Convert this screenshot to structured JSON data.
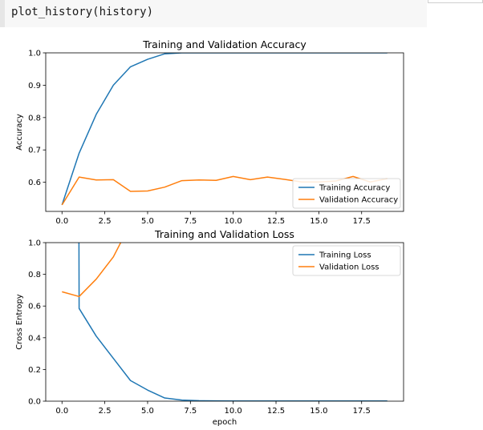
{
  "cell": {
    "code": "plot_history(history)"
  },
  "chart_data": [
    {
      "type": "line",
      "title": "Training and Validation Accuracy",
      "xlabel": "",
      "ylabel": "Accuracy",
      "xlim": [
        -0.95,
        19.95
      ],
      "ylim": [
        0.51,
        1.0
      ],
      "xticks": [
        0.0,
        2.5,
        5.0,
        7.5,
        10.0,
        12.5,
        15.0,
        17.5
      ],
      "xtick_labels": [
        "0.0",
        "2.5",
        "5.0",
        "7.5",
        "10.0",
        "12.5",
        "15.0",
        "17.5"
      ],
      "yticks": [
        0.6,
        0.7,
        0.8,
        0.9,
        1.0
      ],
      "ytick_labels": [
        "0.6",
        "0.7",
        "0.8",
        "0.9",
        "1.0"
      ],
      "legend_position": "lower-right",
      "x": [
        0,
        1,
        2,
        3,
        4,
        5,
        6,
        7,
        8,
        9,
        10,
        11,
        12,
        13,
        14,
        15,
        16,
        17,
        18,
        19
      ],
      "series": [
        {
          "name": "Training Accuracy",
          "color": "#1f77b4",
          "values": [
            0.53,
            0.69,
            0.81,
            0.9,
            0.957,
            0.98,
            0.997,
            1.0,
            1.0,
            1.0,
            1.0,
            1.0,
            1.0,
            1.0,
            1.0,
            1.0,
            1.0,
            1.0,
            1.0,
            1.0
          ]
        },
        {
          "name": "Validation Accuracy",
          "color": "#ff7f0e",
          "values": [
            0.53,
            0.616,
            0.607,
            0.608,
            0.572,
            0.573,
            0.585,
            0.605,
            0.607,
            0.606,
            0.618,
            0.608,
            0.616,
            0.609,
            0.601,
            0.601,
            0.604,
            0.618,
            0.601,
            0.611
          ]
        }
      ]
    },
    {
      "type": "line",
      "title": "Training and Validation Loss",
      "xlabel": "epoch",
      "ylabel": "Cross Entropy",
      "xlim": [
        -0.95,
        19.95
      ],
      "ylim": [
        0.0,
        1.0
      ],
      "xticks": [
        0.0,
        2.5,
        5.0,
        7.5,
        10.0,
        12.5,
        15.0,
        17.5
      ],
      "xtick_labels": [
        "0.0",
        "2.5",
        "5.0",
        "7.5",
        "10.0",
        "12.5",
        "15.0",
        "17.5"
      ],
      "yticks": [
        0.0,
        0.2,
        0.4,
        0.6,
        0.8,
        1.0
      ],
      "ytick_labels": [
        "0.0",
        "0.2",
        "0.4",
        "0.6",
        "0.8",
        "1.0"
      ],
      "legend_position": "upper-right",
      "series": [
        {
          "name": "Training Loss",
          "color": "#1f77b4",
          "x": [
            0.97,
            0.99,
            1,
            2,
            3,
            4,
            5,
            6,
            7,
            8,
            9,
            10,
            11,
            12,
            13,
            14,
            15,
            16,
            17,
            18,
            19
          ],
          "values": [
            1.5,
            1.0,
            0.585,
            0.41,
            0.27,
            0.13,
            0.07,
            0.02,
            0.007,
            0.003,
            0.002,
            0.001,
            0.001,
            0.001,
            0.001,
            0.001,
            0.001,
            0.001,
            0.001,
            0.001,
            0.001
          ]
        },
        {
          "name": "Validation Loss",
          "color": "#ff7f0e",
          "x": [
            0,
            1,
            2,
            3,
            4
          ],
          "values": [
            0.69,
            0.66,
            0.77,
            0.91,
            1.12
          ]
        }
      ]
    }
  ]
}
